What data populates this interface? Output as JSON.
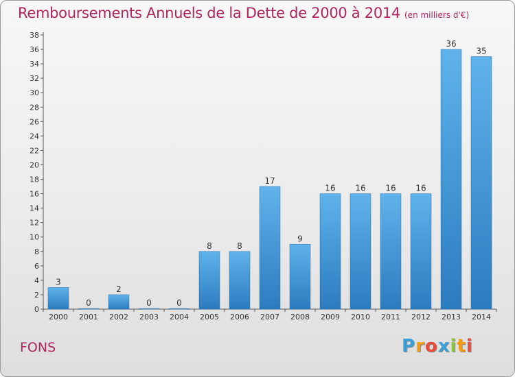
{
  "chart_data": {
    "type": "bar",
    "title": "Remboursements Annuels de la Dette de 2000 à 2014",
    "subtitle": "(en milliers d'€)",
    "categories": [
      "2000",
      "2001",
      "2002",
      "2003",
      "2004",
      "2005",
      "2006",
      "2007",
      "2008",
      "2009",
      "2010",
      "2011",
      "2012",
      "2013",
      "2014"
    ],
    "values": [
      3,
      0,
      2,
      0,
      0,
      8,
      8,
      17,
      9,
      16,
      16,
      16,
      16,
      36,
      35
    ],
    "ylim": [
      0,
      38
    ],
    "yticks": [
      0,
      2,
      4,
      6,
      8,
      10,
      12,
      14,
      16,
      18,
      20,
      22,
      24,
      26,
      28,
      30,
      32,
      34,
      36,
      38
    ],
    "grid": false,
    "bar_color": "#3d8fd6"
  },
  "footer": {
    "commune": "FONS",
    "brand": {
      "letters": [
        "P",
        "r",
        "o",
        "x",
        "i",
        "t",
        "i"
      ],
      "colors": [
        "#3b9fd8",
        "#f39c12",
        "#e74c3c",
        "#3b9fd8",
        "#8cc63f",
        "#f39c12",
        "#e74c3c"
      ]
    }
  }
}
